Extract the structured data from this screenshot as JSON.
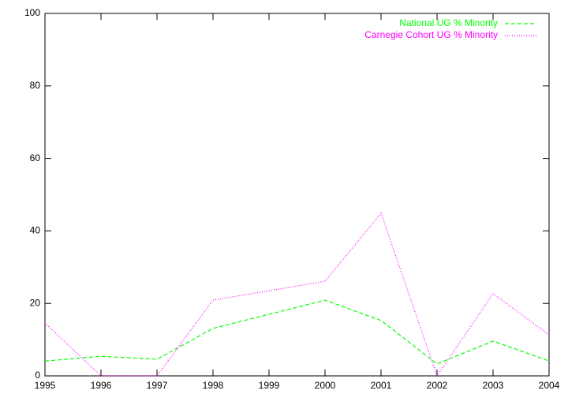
{
  "chart_data": {
    "type": "line",
    "x": [
      1995,
      1996,
      1997,
      1998,
      1999,
      2000,
      2001,
      2002,
      2003,
      2004
    ],
    "series": [
      {
        "name": "National UG % Minority",
        "color": "#00ff00",
        "dash": "dashed",
        "values": [
          4.1,
          5.4,
          4.6,
          13.1,
          17,
          20.9,
          15.3,
          3.3,
          9.6,
          4.1
        ]
      },
      {
        "name": "Carnegie Cohort UG % Minority",
        "color": "#ff00ff",
        "dash": "dotted",
        "values": [
          14.6,
          0,
          0,
          20.9,
          23.5,
          26.1,
          44.9,
          0,
          22.7,
          11.3
        ]
      }
    ],
    "xlim": [
      1995,
      2004
    ],
    "xticks": [
      1995,
      1996,
      1997,
      1998,
      1999,
      2000,
      2001,
      2002,
      2003,
      2004
    ],
    "ylim": [
      0,
      100
    ],
    "yticks": [
      0,
      20,
      40,
      60,
      80,
      100
    ],
    "legend": "top-right"
  }
}
